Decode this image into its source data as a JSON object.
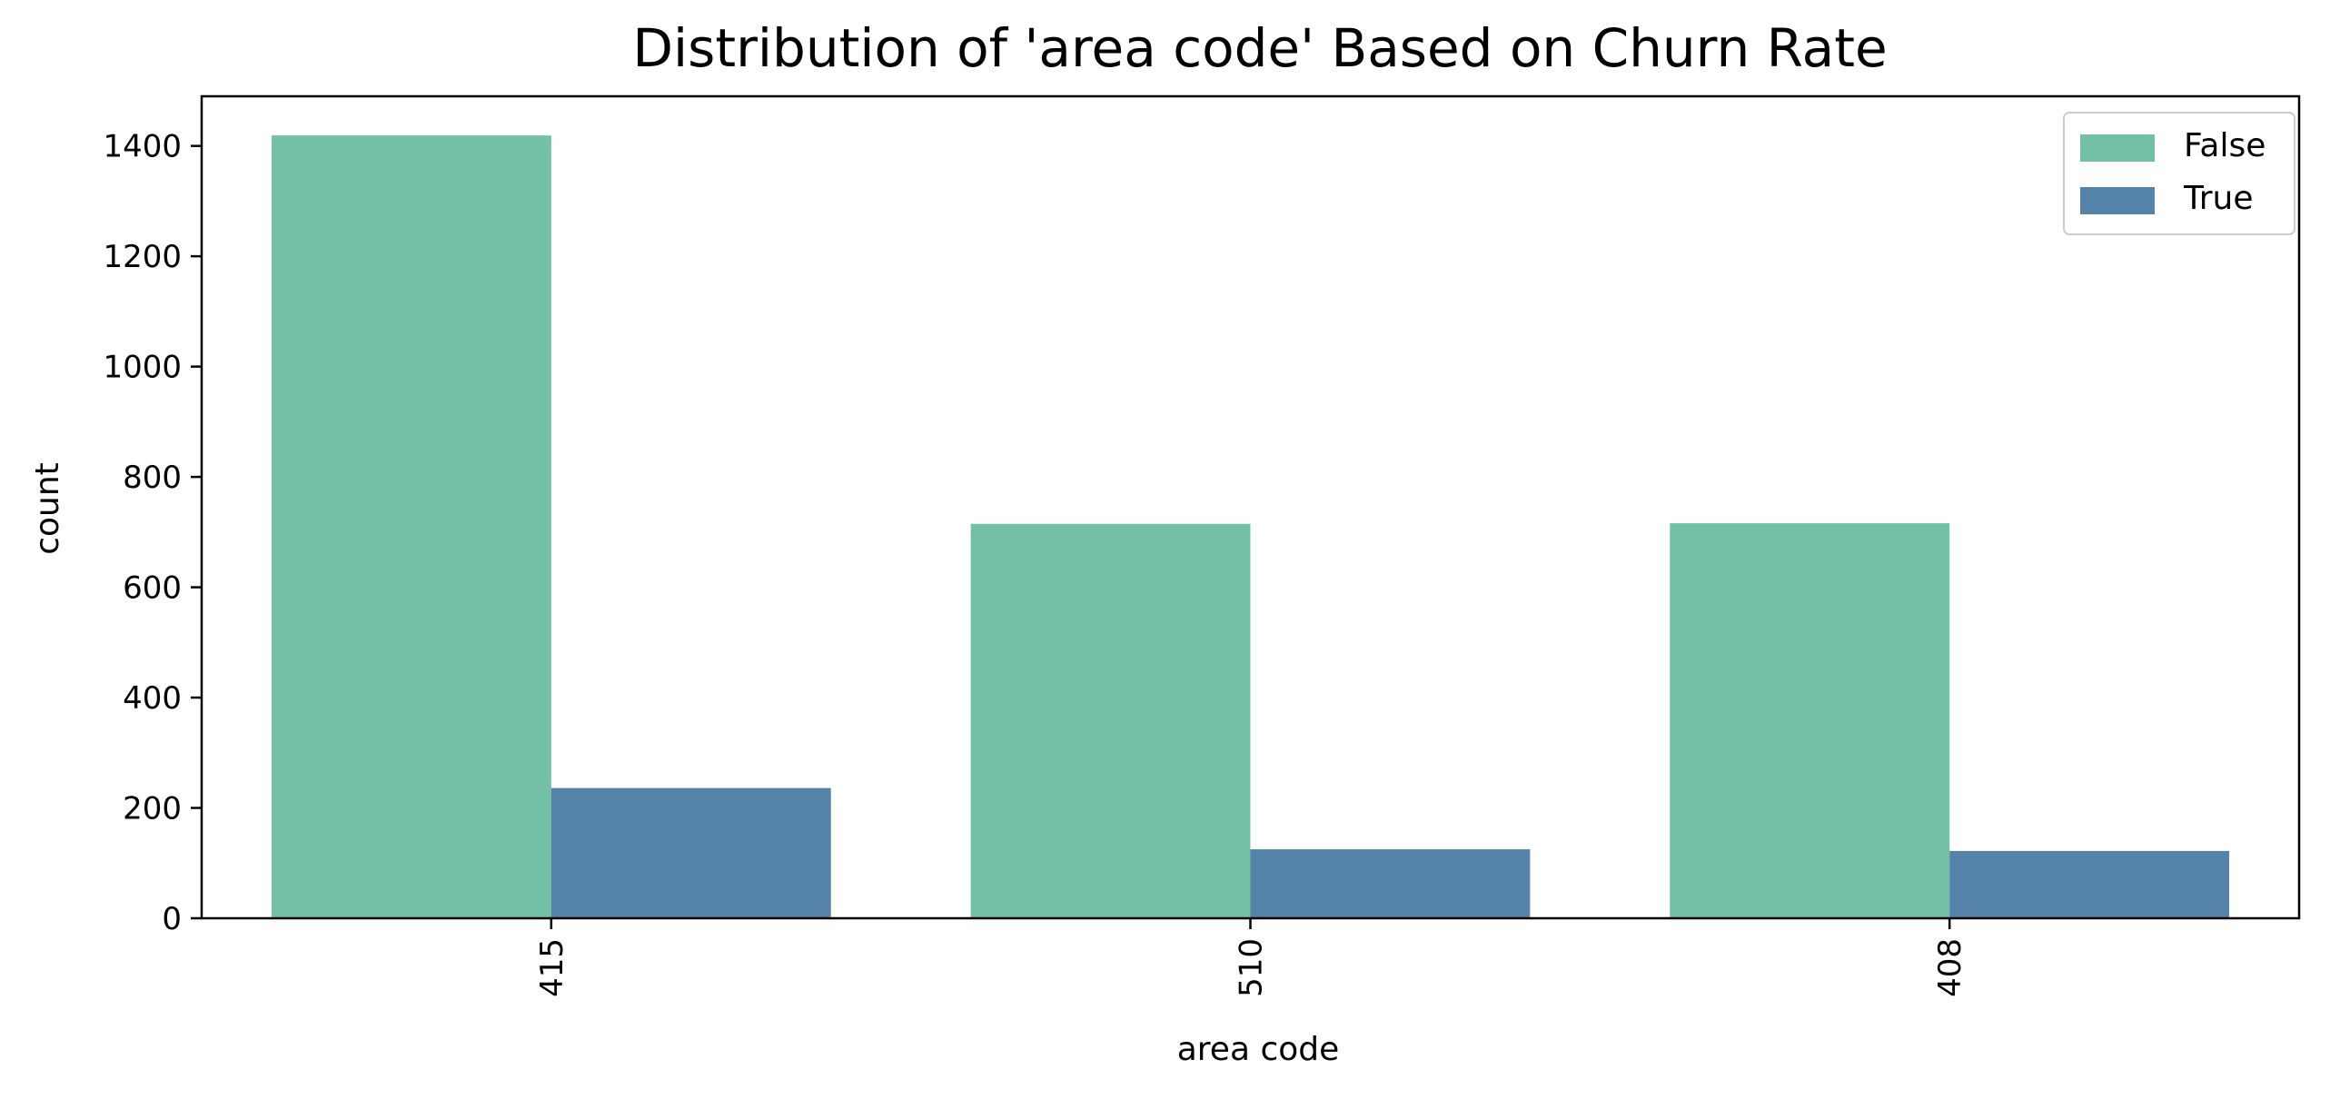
{
  "chart_data": {
    "type": "bar",
    "title": "Distribution of 'area code' Based on Churn Rate",
    "xlabel": "area code",
    "ylabel": "count",
    "categories": [
      "415",
      "510",
      "408"
    ],
    "series": [
      {
        "name": "False",
        "values": [
          1419,
          715,
          716
        ],
        "color": "#74c0a5"
      },
      {
        "name": "True",
        "values": [
          236,
          125,
          122
        ],
        "color": "#5482a8"
      }
    ],
    "ylim": [
      0,
      1490
    ],
    "yticks": [
      0,
      200,
      400,
      600,
      800,
      1000,
      1200,
      1400
    ],
    "ytick_labels": [
      "0",
      "200",
      "400",
      "600",
      "800",
      "1000",
      "1200",
      "1400"
    ],
    "xtick_rotation": "vertical",
    "legend_position": "top-right",
    "grid": false
  }
}
